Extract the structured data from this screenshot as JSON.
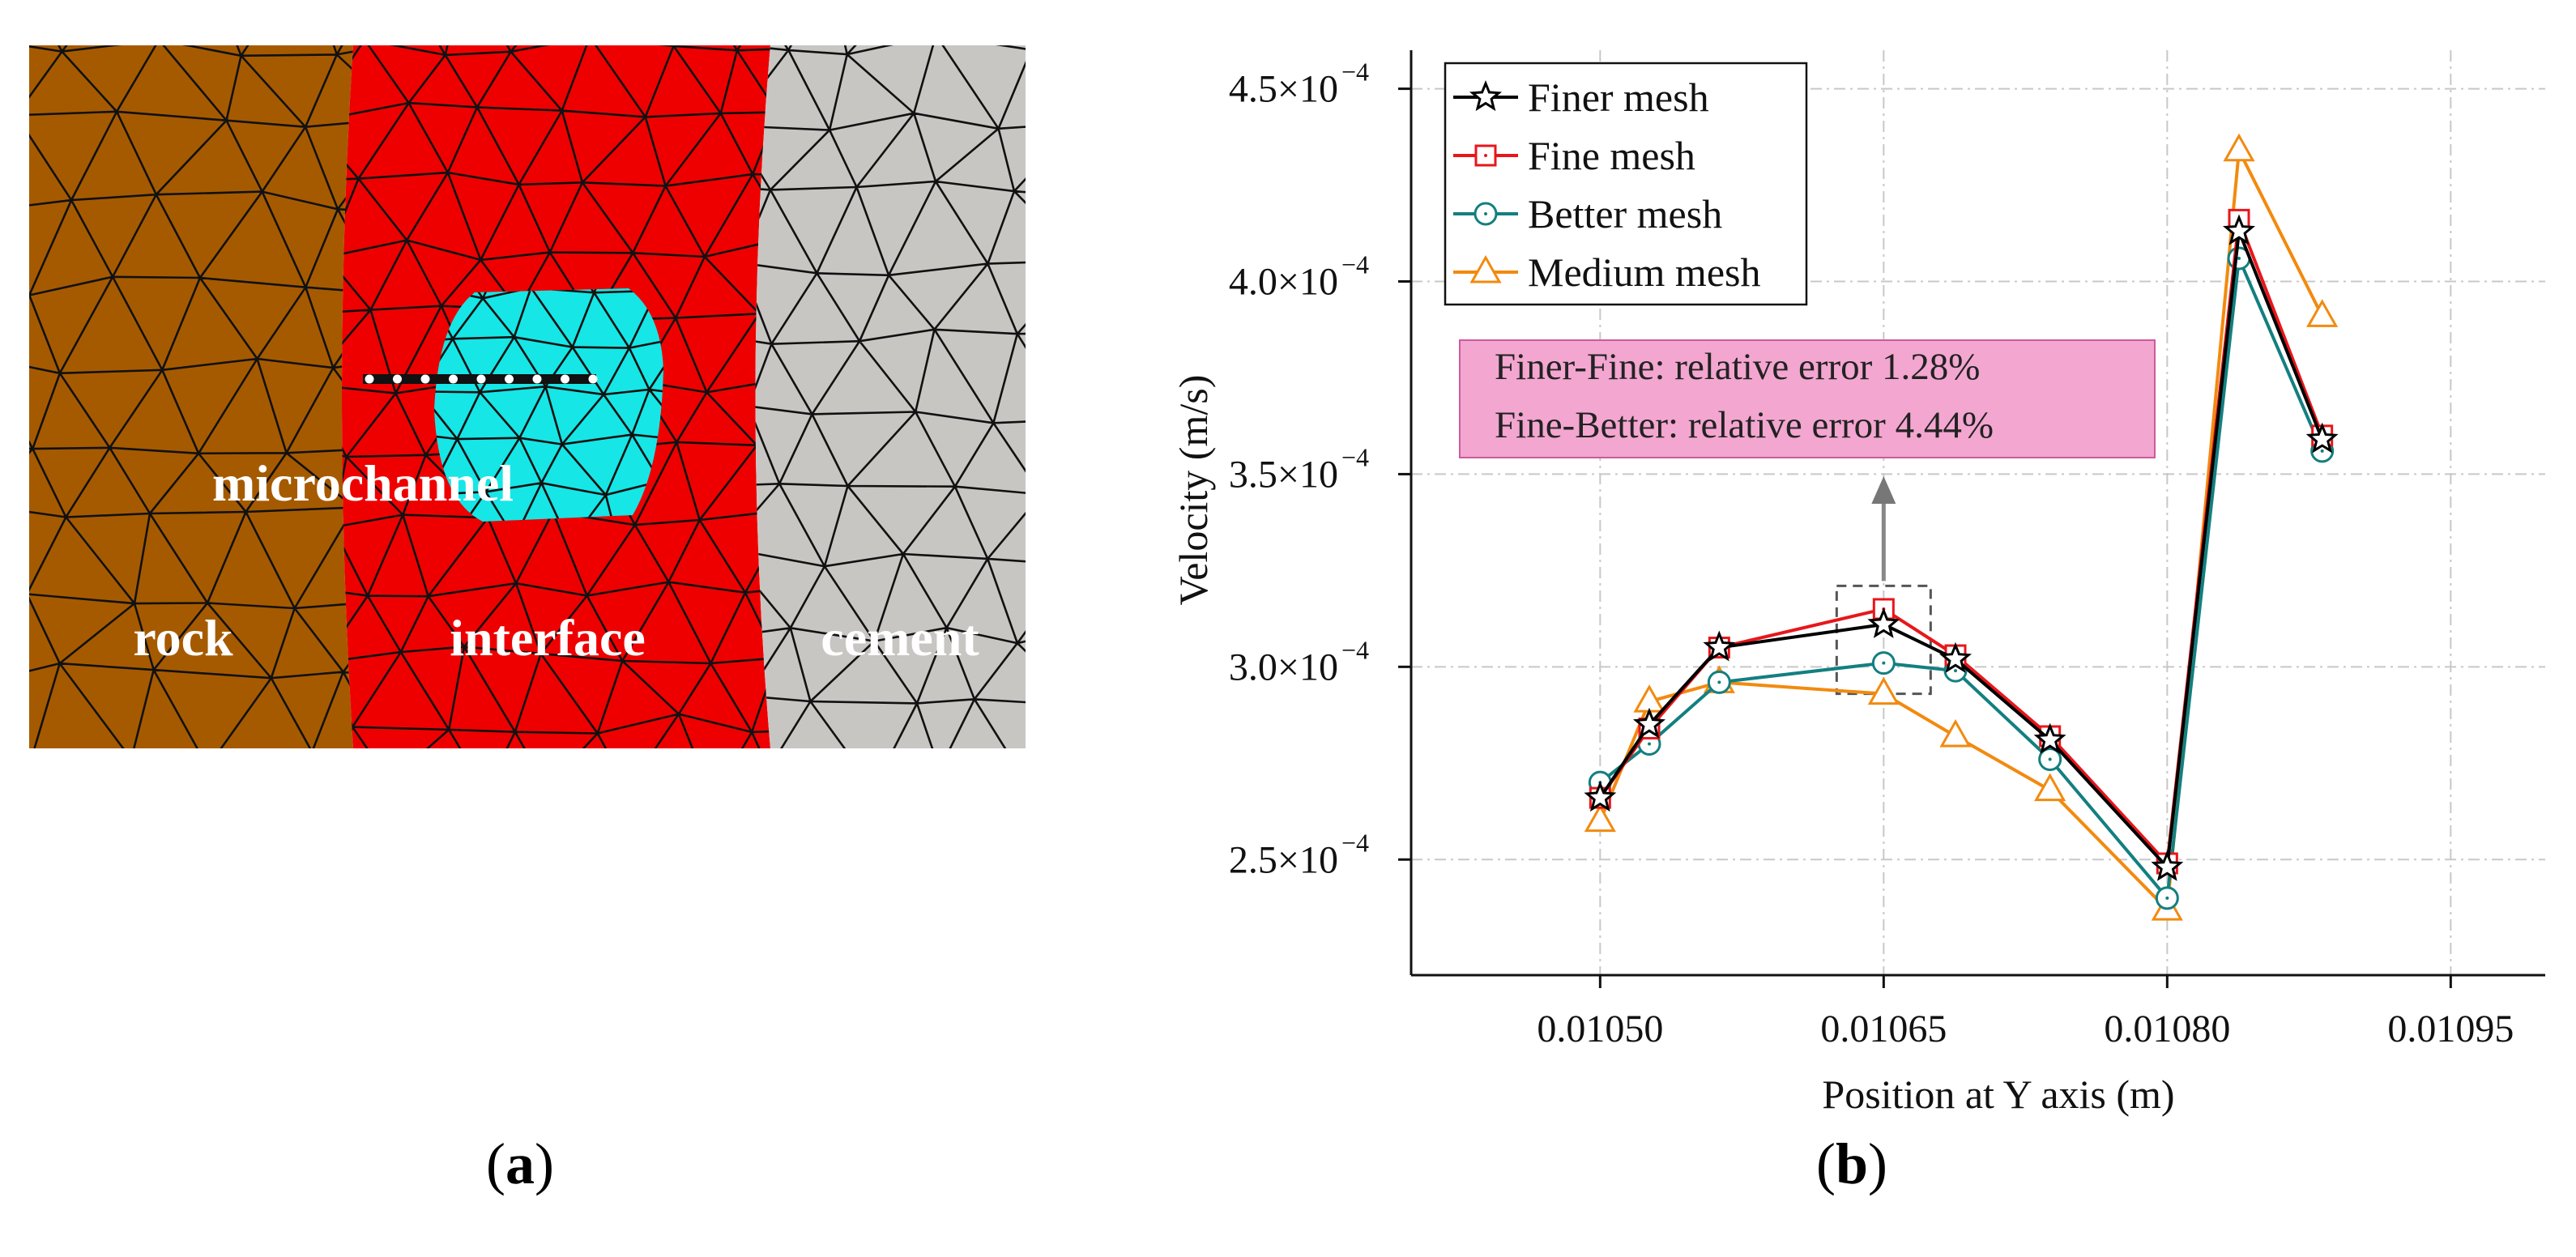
{
  "panels": {
    "a": {
      "label_open": "(",
      "label_letter": "a",
      "label_close": ")"
    },
    "b": {
      "label_open": "(",
      "label_letter": "b",
      "label_close": ")"
    }
  },
  "mesh_figure": {
    "region_labels": {
      "rock": "rock",
      "interface": "interface",
      "cement": "cement",
      "microchannel": "microchannel"
    },
    "colors": {
      "rock": "#a65a00",
      "interface": "#ee0000",
      "cement": "#c8c6c3",
      "microchannel": "#16e6e6"
    }
  },
  "chart_data": {
    "type": "line",
    "xlabel": "Position at Y axis (m)",
    "ylabel": "Velocity (m/s)",
    "xlim": [
      0.0104,
      0.011
    ],
    "ylim": [
      0.00022,
      0.00046
    ],
    "xticks": [
      0.0105,
      0.01065,
      0.0108,
      0.01095
    ],
    "xtick_labels": [
      "0.01050",
      "0.01065",
      "0.01080",
      "0.01095"
    ],
    "yticks": [
      0.00025,
      0.0003,
      0.00035,
      0.0004,
      0.00045
    ],
    "ytick_labels": [
      {
        "mant": "2.5×10",
        "exp": "−4"
      },
      {
        "mant": "3.0×10",
        "exp": "−4"
      },
      {
        "mant": "3.5×10",
        "exp": "−4"
      },
      {
        "mant": "4.0×10",
        "exp": "−4"
      },
      {
        "mant": "4.5×10",
        "exp": "−4"
      }
    ],
    "grid": true,
    "legend_position": "top-left",
    "x": [
      0.0105,
      0.010526,
      0.010563,
      0.01065,
      0.010688,
      0.010738,
      0.0108,
      0.010838,
      0.010882
    ],
    "series": [
      {
        "name": "Finer mesh",
        "color": "#000000",
        "marker": "star",
        "values": [
          0.000266,
          0.000285,
          0.000305,
          0.000311,
          0.000302,
          0.000281,
          0.000248,
          0.000413,
          0.000359
        ]
      },
      {
        "name": "Fine mesh",
        "color": "#e8161b",
        "marker": "square",
        "values": [
          0.000266,
          0.000284,
          0.000305,
          0.000315,
          0.000303,
          0.000282,
          0.000249,
          0.000416,
          0.00036
        ]
      },
      {
        "name": "Better mesh",
        "color": "#137f80",
        "marker": "circle",
        "values": [
          0.00027,
          0.00028,
          0.000296,
          0.000301,
          0.000299,
          0.000276,
          0.00024,
          0.000406,
          0.000356
        ]
      },
      {
        "name": "Medium mesh",
        "color": "#f28a0f",
        "marker": "triangle",
        "values": [
          0.00026,
          0.000291,
          0.000296,
          0.000293,
          0.000282,
          0.000268,
          0.000237,
          0.000434,
          0.000391
        ]
      }
    ],
    "annotation": {
      "lines": [
        "Finer-Fine: relative error 1.28%",
        "Fine-Better: relative error 4.44%"
      ],
      "box_color": "#f3a6d0",
      "highlight_x": 0.01065,
      "highlight_y_range": [
        0.000293,
        0.000321
      ]
    }
  }
}
